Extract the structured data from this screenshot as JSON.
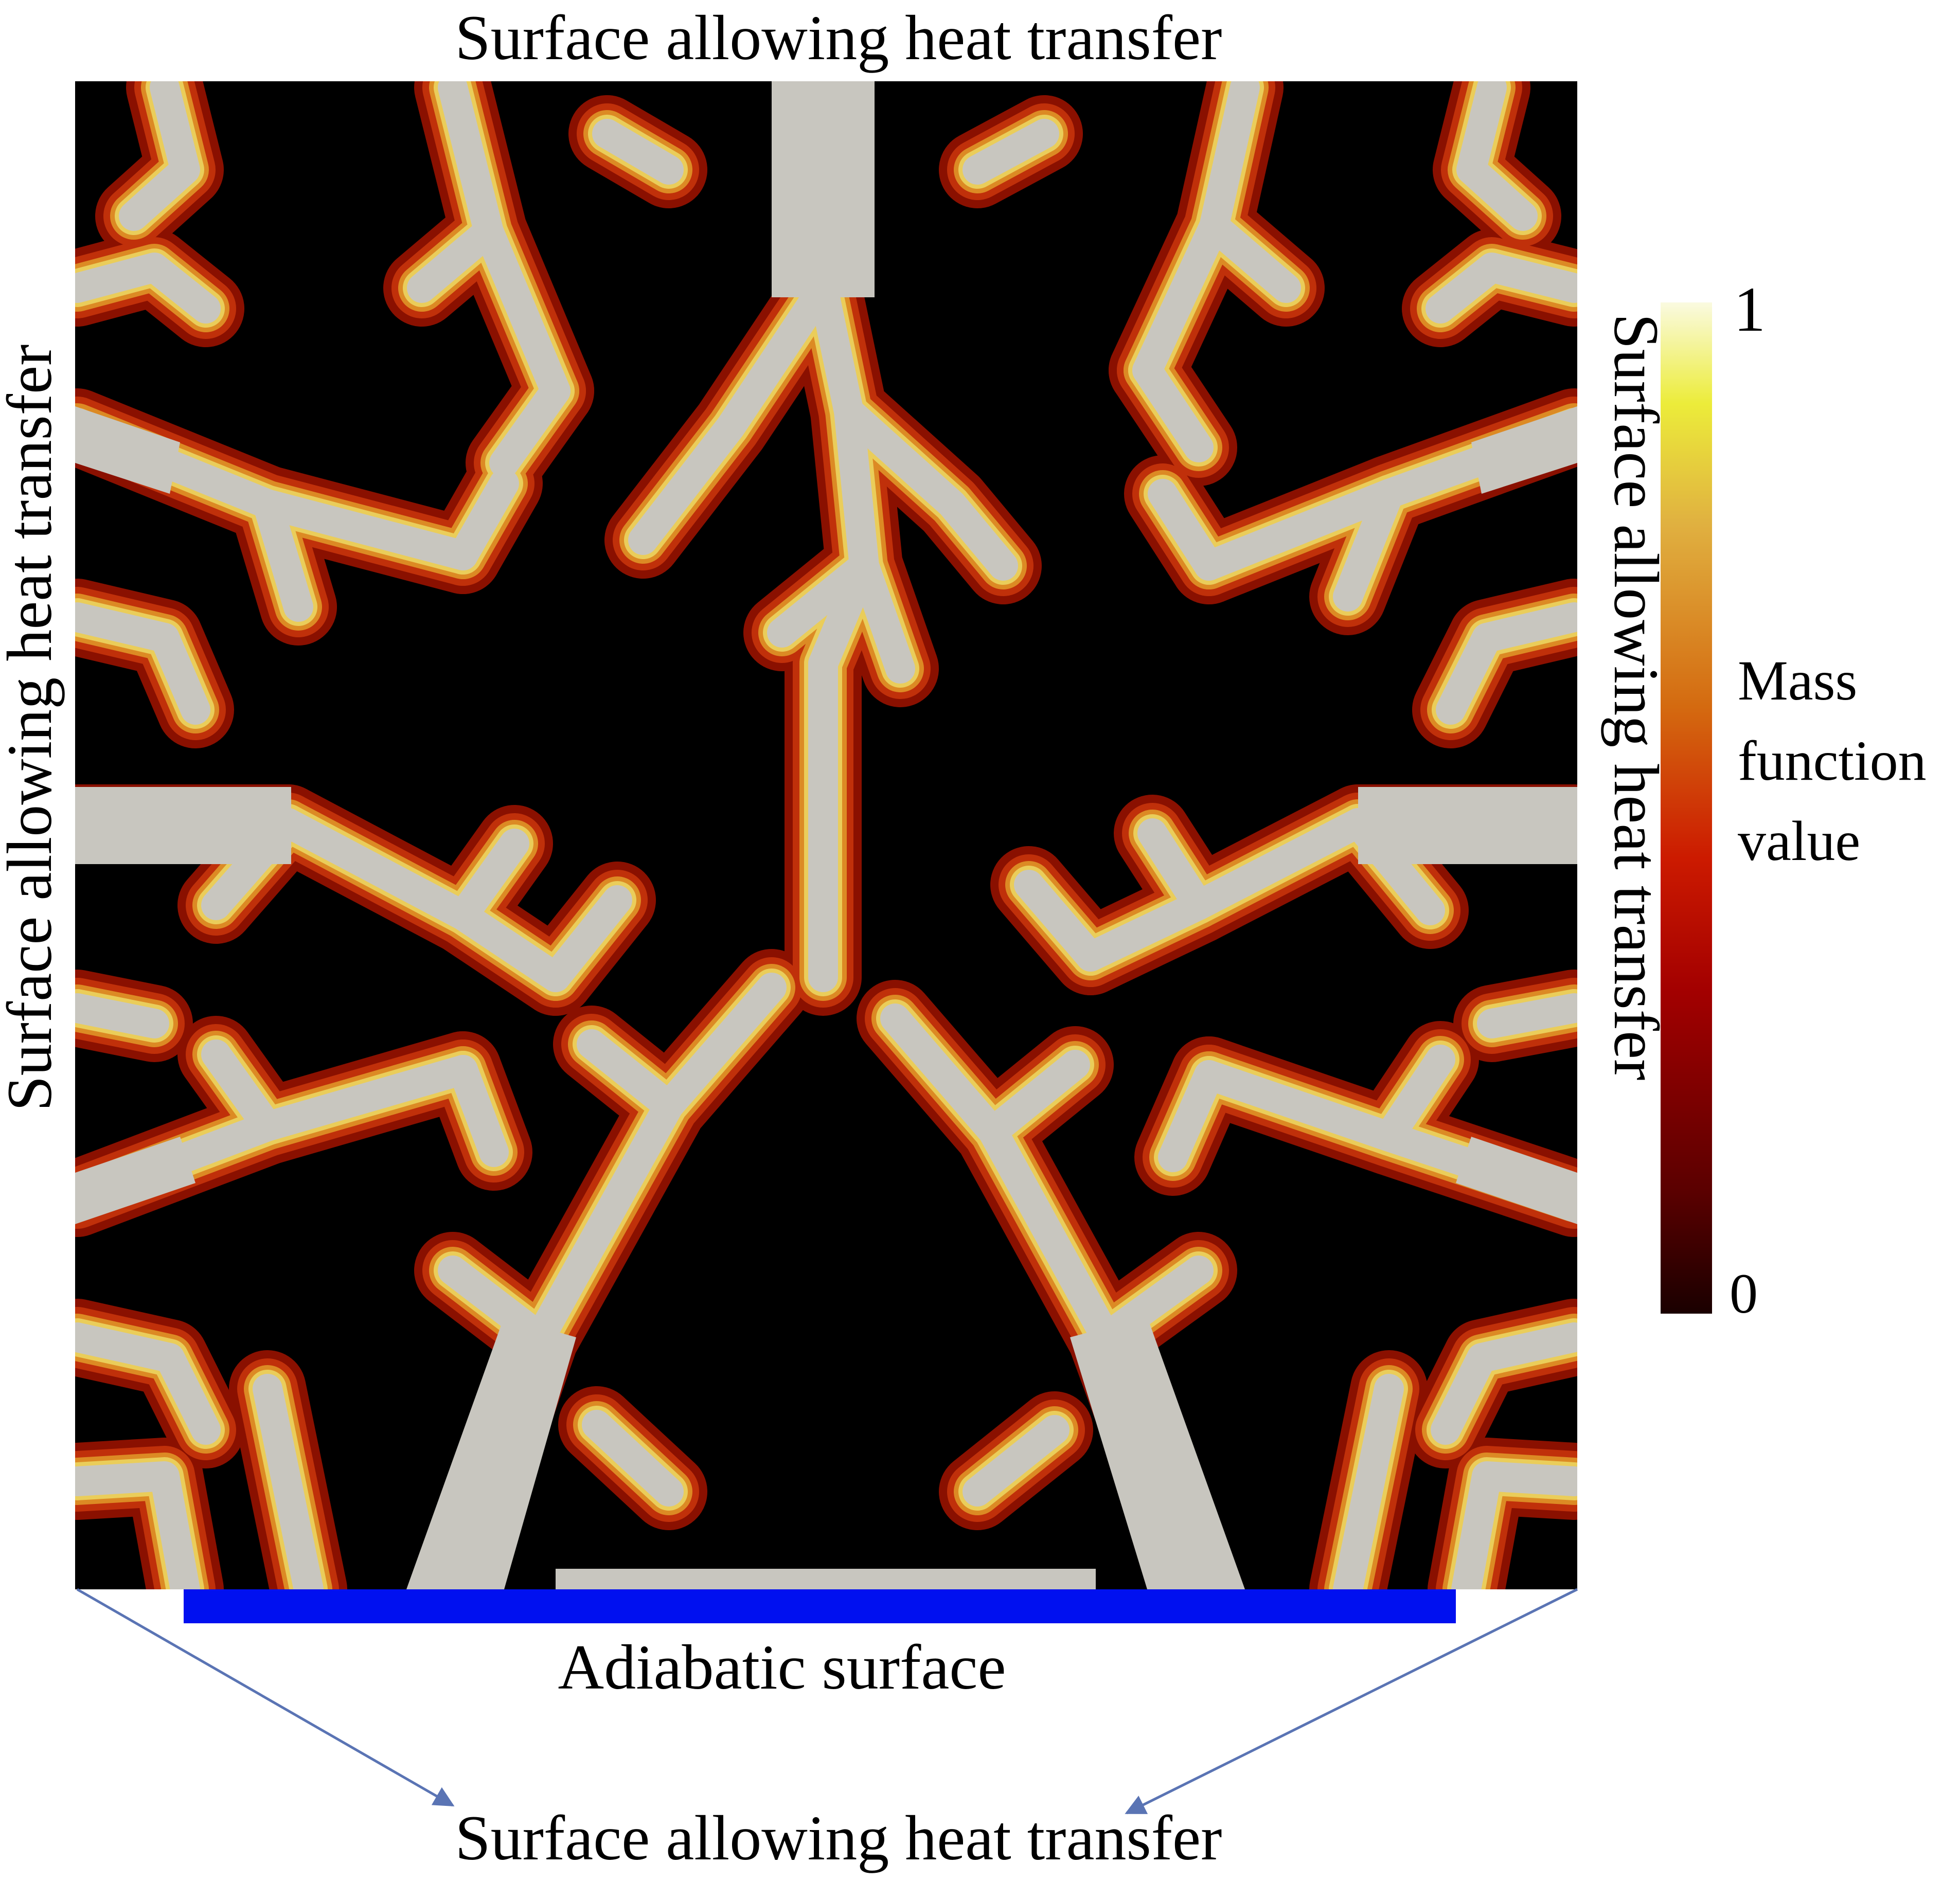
{
  "labels": {
    "top": "Surface allowing heat transfer",
    "left": "Surface allowing heat transfer",
    "right": "Surface allowing heat transfer",
    "bottom": "Surface allowing heat transfer",
    "adiabatic": "Adiabatic surface"
  },
  "colorbar": {
    "max": "1",
    "min": "0",
    "title_lines": [
      "Mass",
      "function",
      "value"
    ]
  },
  "colors": {
    "solid": "#c8c6bf",
    "void": "#000000",
    "edge_inner": "#e8c24a",
    "edge_outer": "#b8200a",
    "adiabatic_bar": "#0010f0",
    "arrow": "#5a74b4"
  }
}
